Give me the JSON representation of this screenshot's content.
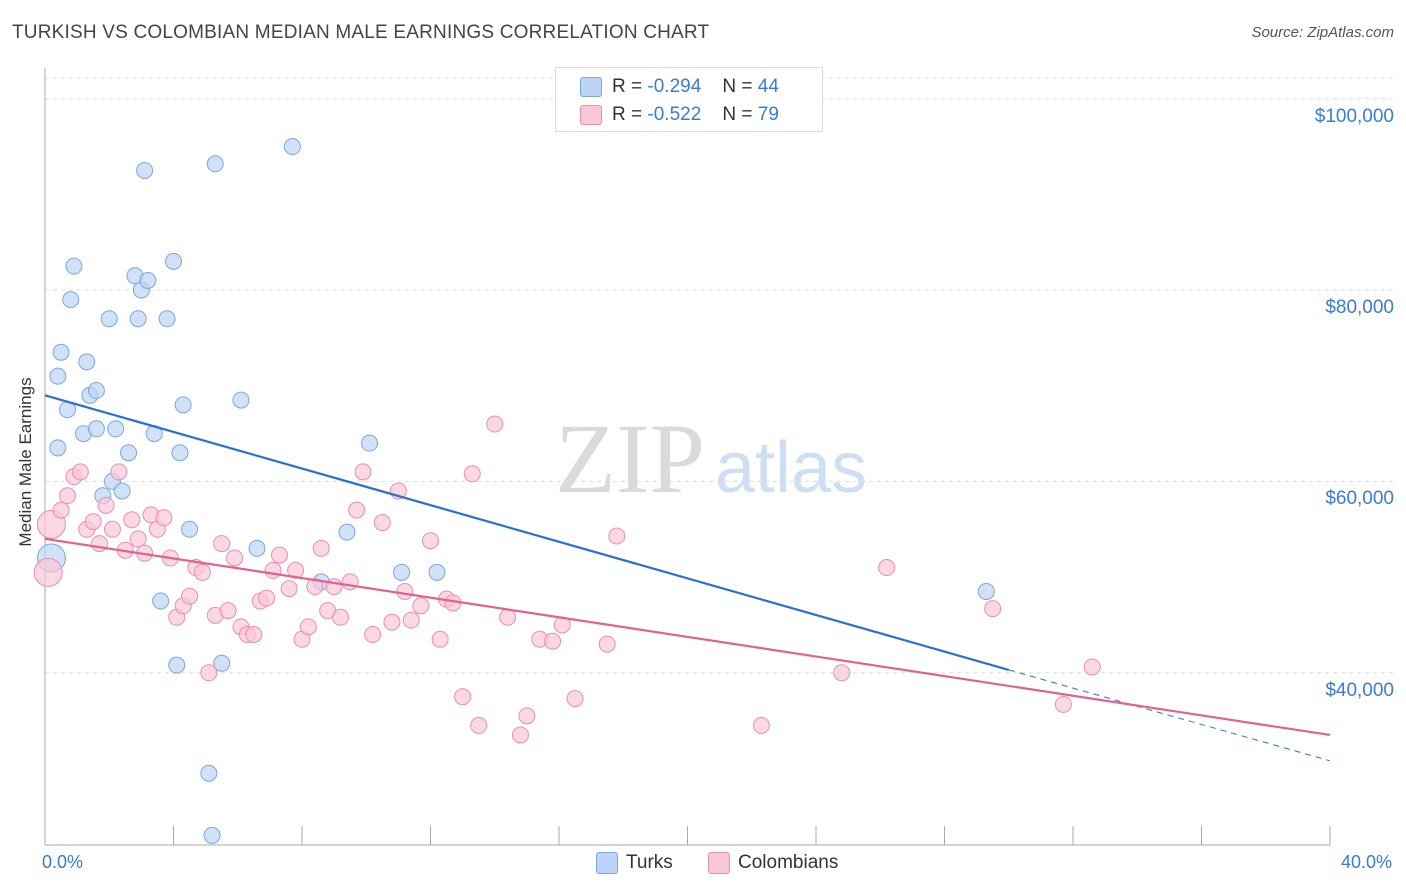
{
  "title": "TURKISH VS COLOMBIAN MEDIAN MALE EARNINGS CORRELATION CHART",
  "source": "Source: ZipAtlas.com",
  "watermark": "ZIPatlas",
  "colors": {
    "turks_fill": "#bcd4f5",
    "turks_stroke": "#7aa7e0",
    "turks_line": "#2a6fd1",
    "colombians_fill": "#f9c7d6",
    "colombians_stroke": "#ea8fac",
    "colombians_line": "#e0628e",
    "tick_label": "#3a7bd5",
    "grid": "#dddddd"
  },
  "legend": {
    "rows": [
      {
        "r_label": "R =",
        "r_value": "-0.294",
        "n_label": "N =",
        "n_value": "44"
      },
      {
        "r_label": "R =",
        "r_value": "-0.522",
        "n_label": "N =",
        "n_value": "79"
      }
    ]
  },
  "bottom_legend": [
    "Turks",
    "Colombians"
  ],
  "chart_data": {
    "type": "scatter",
    "title": "TURKISH VS COLOMBIAN MEDIAN MALE EARNINGS CORRELATION CHART",
    "xlabel": "",
    "ylabel": "Median Male Earnings",
    "xlim": [
      0,
      40
    ],
    "ylim": [
      22000,
      103000
    ],
    "x_tick_labels": [
      "0.0%",
      "40.0%"
    ],
    "y_ticks": [
      40000,
      60000,
      80000,
      100000
    ],
    "y_tick_labels": [
      "$40,000",
      "$60,000",
      "$80,000",
      "$100,000"
    ],
    "grid": true,
    "legend_position": "top-center",
    "series": [
      {
        "name": "Turks",
        "r": -0.294,
        "n": 44,
        "trend": {
          "x0": 0,
          "y0": 69000,
          "x1": 30.0,
          "y1": 40300,
          "dash_to_x": 40.0,
          "dash_to_y": 30800
        },
        "points": [
          [
            0.2,
            52000
          ],
          [
            0.4,
            63500
          ],
          [
            0.4,
            71000
          ],
          [
            0.5,
            73500
          ],
          [
            0.7,
            67500
          ],
          [
            0.8,
            79000
          ],
          [
            0.9,
            82500
          ],
          [
            1.2,
            65000
          ],
          [
            1.3,
            72500
          ],
          [
            1.4,
            69000
          ],
          [
            1.6,
            65500
          ],
          [
            1.6,
            69500
          ],
          [
            1.8,
            58500
          ],
          [
            2.0,
            77000
          ],
          [
            2.1,
            60000
          ],
          [
            2.2,
            65500
          ],
          [
            2.4,
            59000
          ],
          [
            2.6,
            63000
          ],
          [
            2.8,
            81500
          ],
          [
            2.9,
            77000
          ],
          [
            3.0,
            80000
          ],
          [
            3.1,
            92500
          ],
          [
            3.2,
            81000
          ],
          [
            3.4,
            65000
          ],
          [
            3.6,
            47500
          ],
          [
            3.8,
            77000
          ],
          [
            4.0,
            83000
          ],
          [
            4.1,
            40800
          ],
          [
            4.2,
            63000
          ],
          [
            4.3,
            68000
          ],
          [
            4.5,
            55000
          ],
          [
            5.1,
            29500
          ],
          [
            5.2,
            23000
          ],
          [
            5.3,
            93200
          ],
          [
            5.5,
            41000
          ],
          [
            6.1,
            68500
          ],
          [
            6.6,
            53000
          ],
          [
            7.7,
            95000
          ],
          [
            8.6,
            49500
          ],
          [
            9.4,
            54700
          ],
          [
            10.1,
            64000
          ],
          [
            11.1,
            50500
          ],
          [
            12.2,
            50500
          ],
          [
            29.3,
            48500
          ]
        ]
      },
      {
        "name": "Colombians",
        "r": -0.522,
        "n": 79,
        "trend": {
          "x0": 0,
          "y0": 54000,
          "x1": 40.0,
          "y1": 33500
        },
        "points": [
          [
            0.1,
            50500
          ],
          [
            0.2,
            55500
          ],
          [
            0.5,
            57000
          ],
          [
            0.7,
            58500
          ],
          [
            0.9,
            60500
          ],
          [
            1.1,
            61000
          ],
          [
            1.3,
            55000
          ],
          [
            1.5,
            55800
          ],
          [
            1.7,
            53500
          ],
          [
            1.9,
            57500
          ],
          [
            2.1,
            55000
          ],
          [
            2.3,
            61000
          ],
          [
            2.5,
            52800
          ],
          [
            2.7,
            56000
          ],
          [
            2.9,
            54000
          ],
          [
            3.1,
            52500
          ],
          [
            3.3,
            56500
          ],
          [
            3.5,
            55000
          ],
          [
            3.7,
            56200
          ],
          [
            3.9,
            52000
          ],
          [
            4.1,
            45800
          ],
          [
            4.3,
            47000
          ],
          [
            4.5,
            48000
          ],
          [
            4.7,
            51000
          ],
          [
            4.9,
            50500
          ],
          [
            5.1,
            40000
          ],
          [
            5.3,
            46000
          ],
          [
            5.5,
            53500
          ],
          [
            5.7,
            46500
          ],
          [
            5.9,
            52000
          ],
          [
            6.1,
            44800
          ],
          [
            6.3,
            44000
          ],
          [
            6.5,
            44000
          ],
          [
            6.7,
            47500
          ],
          [
            6.9,
            47800
          ],
          [
            7.1,
            50700
          ],
          [
            7.3,
            52300
          ],
          [
            7.6,
            48800
          ],
          [
            7.8,
            50700
          ],
          [
            8.0,
            43500
          ],
          [
            8.2,
            44800
          ],
          [
            8.4,
            49000
          ],
          [
            8.6,
            53000
          ],
          [
            8.8,
            46500
          ],
          [
            9.0,
            49000
          ],
          [
            9.2,
            45800
          ],
          [
            9.5,
            49500
          ],
          [
            9.7,
            57000
          ],
          [
            9.9,
            61000
          ],
          [
            10.2,
            44000
          ],
          [
            10.5,
            55700
          ],
          [
            10.8,
            45300
          ],
          [
            11.0,
            59000
          ],
          [
            11.2,
            48500
          ],
          [
            11.4,
            45500
          ],
          [
            11.7,
            47000
          ],
          [
            12.0,
            53800
          ],
          [
            12.3,
            43500
          ],
          [
            12.5,
            47700
          ],
          [
            12.7,
            47300
          ],
          [
            13.0,
            37500
          ],
          [
            13.3,
            60800
          ],
          [
            13.5,
            34500
          ],
          [
            14.0,
            66000
          ],
          [
            14.4,
            45800
          ],
          [
            14.8,
            33500
          ],
          [
            15.0,
            35500
          ],
          [
            15.4,
            43500
          ],
          [
            15.8,
            43300
          ],
          [
            16.1,
            45000
          ],
          [
            16.5,
            37300
          ],
          [
            17.5,
            43000
          ],
          [
            17.8,
            54300
          ],
          [
            22.3,
            34500
          ],
          [
            24.8,
            40000
          ],
          [
            26.2,
            51000
          ],
          [
            29.5,
            46700
          ],
          [
            31.7,
            36700
          ],
          [
            32.6,
            40600
          ]
        ]
      }
    ]
  }
}
